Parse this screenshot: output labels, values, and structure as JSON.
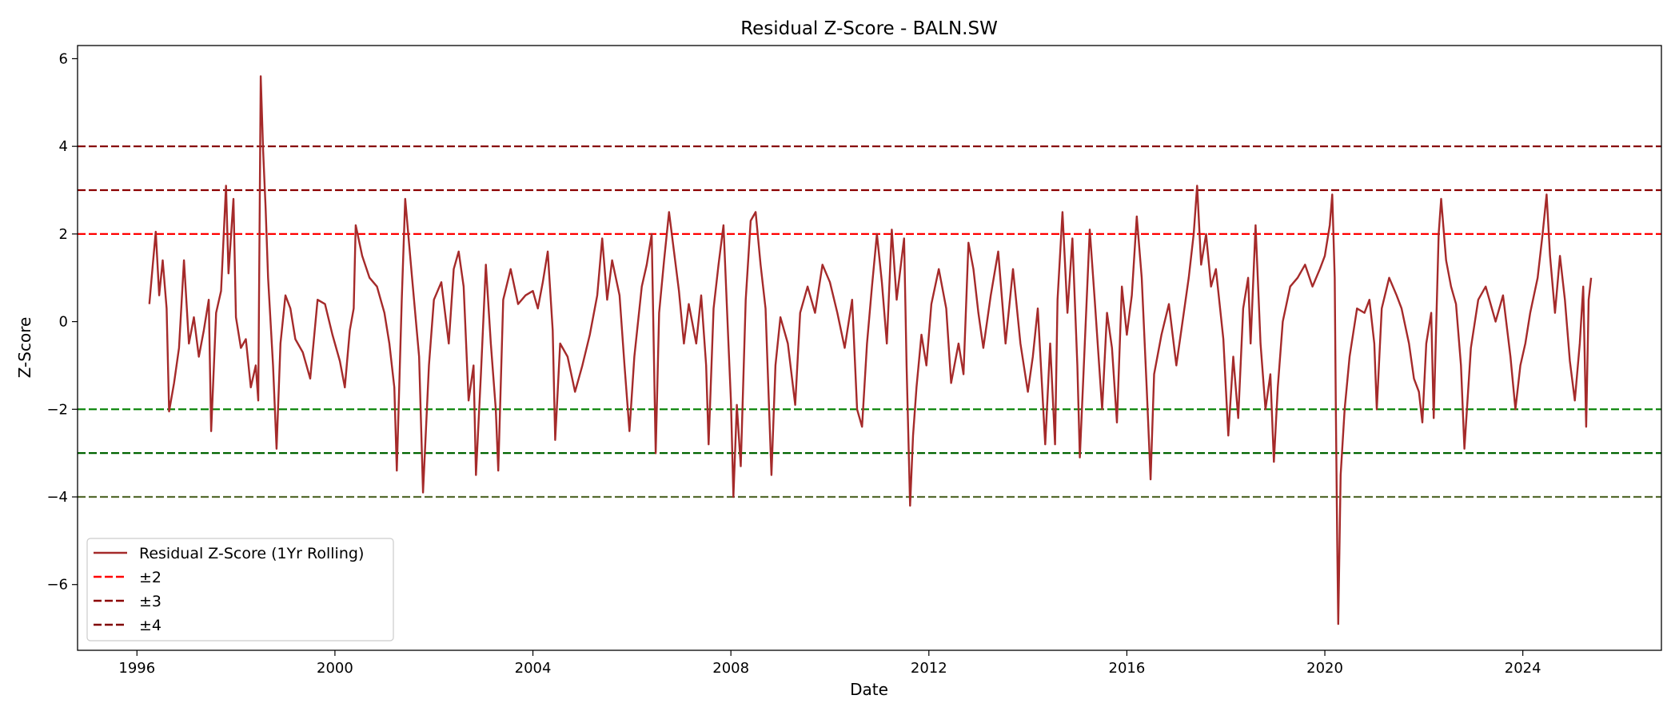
{
  "chart_data": {
    "type": "line",
    "title": "Residual Z-Score - BALN.SW",
    "xlabel": "Date",
    "ylabel": "Z-Score",
    "xlim": [
      1994.8,
      2026.8
    ],
    "ylim": [
      -7.5,
      6.3
    ],
    "xticks": [
      1996,
      2000,
      2004,
      2008,
      2012,
      2016,
      2020,
      2024
    ],
    "yticks": [
      -6,
      -4,
      -2,
      0,
      2,
      4,
      6
    ],
    "ytick_labels": [
      "−6",
      "−4",
      "−2",
      "0",
      "2",
      "4",
      "6"
    ],
    "grid": false,
    "legend_position": "lower-left",
    "series": [
      {
        "name": "Residual Z-Score (1Yr Rolling)",
        "color": "#a52a2a",
        "style": "solid",
        "points": [
          [
            1996.25,
            0.4
          ],
          [
            1996.32,
            1.3
          ],
          [
            1996.38,
            2.05
          ],
          [
            1996.45,
            0.6
          ],
          [
            1996.52,
            1.4
          ],
          [
            1996.6,
            0.3
          ],
          [
            1996.65,
            -2.05
          ],
          [
            1996.75,
            -1.4
          ],
          [
            1996.85,
            -0.6
          ],
          [
            1996.95,
            1.4
          ],
          [
            1997.05,
            -0.5
          ],
          [
            1997.15,
            0.1
          ],
          [
            1997.25,
            -0.8
          ],
          [
            1997.35,
            -0.2
          ],
          [
            1997.45,
            0.5
          ],
          [
            1997.5,
            -2.5
          ],
          [
            1997.6,
            0.2
          ],
          [
            1997.7,
            0.7
          ],
          [
            1997.8,
            3.1
          ],
          [
            1997.85,
            1.1
          ],
          [
            1997.95,
            2.8
          ],
          [
            1998.0,
            0.1
          ],
          [
            1998.1,
            -0.6
          ],
          [
            1998.2,
            -0.4
          ],
          [
            1998.3,
            -1.5
          ],
          [
            1998.4,
            -1.0
          ],
          [
            1998.45,
            -1.8
          ],
          [
            1998.5,
            5.6
          ],
          [
            1998.55,
            3.9
          ],
          [
            1998.6,
            2.6
          ],
          [
            1998.65,
            1.0
          ],
          [
            1998.75,
            -1.0
          ],
          [
            1998.82,
            -2.9
          ],
          [
            1998.9,
            -0.5
          ],
          [
            1999.0,
            0.6
          ],
          [
            1999.1,
            0.3
          ],
          [
            1999.2,
            -0.4
          ],
          [
            1999.35,
            -0.7
          ],
          [
            1999.5,
            -1.3
          ],
          [
            1999.65,
            0.5
          ],
          [
            1999.8,
            0.4
          ],
          [
            1999.95,
            -0.3
          ],
          [
            2000.1,
            -0.9
          ],
          [
            2000.2,
            -1.5
          ],
          [
            2000.3,
            -0.2
          ],
          [
            2000.38,
            0.3
          ],
          [
            2000.42,
            2.2
          ],
          [
            2000.55,
            1.5
          ],
          [
            2000.7,
            1.0
          ],
          [
            2000.85,
            0.8
          ],
          [
            2001.0,
            0.2
          ],
          [
            2001.1,
            -0.5
          ],
          [
            2001.2,
            -1.5
          ],
          [
            2001.25,
            -3.4
          ],
          [
            2001.35,
            0.5
          ],
          [
            2001.42,
            2.8
          ],
          [
            2001.55,
            1.1
          ],
          [
            2001.7,
            -0.8
          ],
          [
            2001.78,
            -3.9
          ],
          [
            2001.9,
            -1.0
          ],
          [
            2002.0,
            0.5
          ],
          [
            2002.15,
            0.9
          ],
          [
            2002.3,
            -0.5
          ],
          [
            2002.4,
            1.2
          ],
          [
            2002.5,
            1.6
          ],
          [
            2002.6,
            0.8
          ],
          [
            2002.7,
            -1.8
          ],
          [
            2002.8,
            -1.0
          ],
          [
            2002.85,
            -3.5
          ],
          [
            2002.95,
            -1.2
          ],
          [
            2003.05,
            1.3
          ],
          [
            2003.15,
            -0.5
          ],
          [
            2003.25,
            -2.0
          ],
          [
            2003.3,
            -3.4
          ],
          [
            2003.4,
            0.5
          ],
          [
            2003.55,
            1.2
          ],
          [
            2003.7,
            0.4
          ],
          [
            2003.85,
            0.6
          ],
          [
            2004.0,
            0.7
          ],
          [
            2004.1,
            0.3
          ],
          [
            2004.2,
            0.9
          ],
          [
            2004.3,
            1.6
          ],
          [
            2004.4,
            -0.2
          ],
          [
            2004.45,
            -2.7
          ],
          [
            2004.55,
            -0.5
          ],
          [
            2004.7,
            -0.8
          ],
          [
            2004.85,
            -1.6
          ],
          [
            2005.0,
            -1.0
          ],
          [
            2005.15,
            -0.3
          ],
          [
            2005.3,
            0.6
          ],
          [
            2005.4,
            1.9
          ],
          [
            2005.5,
            0.5
          ],
          [
            2005.6,
            1.4
          ],
          [
            2005.75,
            0.6
          ],
          [
            2005.85,
            -1.0
          ],
          [
            2005.95,
            -2.5
          ],
          [
            2006.05,
            -0.8
          ],
          [
            2006.2,
            0.8
          ],
          [
            2006.3,
            1.3
          ],
          [
            2006.4,
            2.0
          ],
          [
            2006.48,
            -3.0
          ],
          [
            2006.55,
            0.2
          ],
          [
            2006.65,
            1.4
          ],
          [
            2006.75,
            2.5
          ],
          [
            2006.85,
            1.6
          ],
          [
            2006.95,
            0.7
          ],
          [
            2007.05,
            -0.5
          ],
          [
            2007.15,
            0.4
          ],
          [
            2007.3,
            -0.5
          ],
          [
            2007.4,
            0.6
          ],
          [
            2007.5,
            -1.0
          ],
          [
            2007.55,
            -2.8
          ],
          [
            2007.65,
            0.3
          ],
          [
            2007.75,
            1.3
          ],
          [
            2007.85,
            2.2
          ],
          [
            2007.95,
            -0.5
          ],
          [
            2008.0,
            -1.8
          ],
          [
            2008.05,
            -4.0
          ],
          [
            2008.12,
            -1.9
          ],
          [
            2008.2,
            -3.3
          ],
          [
            2008.3,
            0.5
          ],
          [
            2008.4,
            2.3
          ],
          [
            2008.5,
            2.5
          ],
          [
            2008.6,
            1.3
          ],
          [
            2008.7,
            0.3
          ],
          [
            2008.75,
            -1.3
          ],
          [
            2008.82,
            -3.5
          ],
          [
            2008.9,
            -1.0
          ],
          [
            2009.0,
            0.1
          ],
          [
            2009.15,
            -0.5
          ],
          [
            2009.3,
            -1.9
          ],
          [
            2009.4,
            0.2
          ],
          [
            2009.55,
            0.8
          ],
          [
            2009.7,
            0.2
          ],
          [
            2009.85,
            1.3
          ],
          [
            2010.0,
            0.9
          ],
          [
            2010.15,
            0.2
          ],
          [
            2010.3,
            -0.6
          ],
          [
            2010.45,
            0.5
          ],
          [
            2010.55,
            -2.0
          ],
          [
            2010.65,
            -2.4
          ],
          [
            2010.75,
            -0.5
          ],
          [
            2010.85,
            0.8
          ],
          [
            2010.95,
            2.0
          ],
          [
            2011.05,
            0.9
          ],
          [
            2011.15,
            -0.5
          ],
          [
            2011.25,
            2.1
          ],
          [
            2011.35,
            0.5
          ],
          [
            2011.5,
            1.9
          ],
          [
            2011.55,
            -1.0
          ],
          [
            2011.62,
            -4.2
          ],
          [
            2011.68,
            -2.6
          ],
          [
            2011.75,
            -1.5
          ],
          [
            2011.85,
            -0.3
          ],
          [
            2011.95,
            -1.0
          ],
          [
            2012.05,
            0.4
          ],
          [
            2012.2,
            1.2
          ],
          [
            2012.35,
            0.3
          ],
          [
            2012.45,
            -1.4
          ],
          [
            2012.6,
            -0.5
          ],
          [
            2012.7,
            -1.2
          ],
          [
            2012.8,
            1.8
          ],
          [
            2012.9,
            1.2
          ],
          [
            2013.0,
            0.2
          ],
          [
            2013.1,
            -0.6
          ],
          [
            2013.25,
            0.6
          ],
          [
            2013.4,
            1.6
          ],
          [
            2013.55,
            -0.5
          ],
          [
            2013.7,
            1.2
          ],
          [
            2013.85,
            -0.5
          ],
          [
            2014.0,
            -1.6
          ],
          [
            2014.1,
            -0.8
          ],
          [
            2014.2,
            0.3
          ],
          [
            2014.35,
            -2.8
          ],
          [
            2014.45,
            -0.5
          ],
          [
            2014.55,
            -2.8
          ],
          [
            2014.6,
            0.5
          ],
          [
            2014.7,
            2.5
          ],
          [
            2014.8,
            0.2
          ],
          [
            2014.9,
            1.9
          ],
          [
            2015.0,
            -1.0
          ],
          [
            2015.05,
            -3.1
          ],
          [
            2015.15,
            -0.5
          ],
          [
            2015.25,
            2.1
          ],
          [
            2015.35,
            0.5
          ],
          [
            2015.5,
            -2.0
          ],
          [
            2015.6,
            0.2
          ],
          [
            2015.7,
            -0.6
          ],
          [
            2015.8,
            -2.3
          ],
          [
            2015.9,
            0.8
          ],
          [
            2016.0,
            -0.3
          ],
          [
            2016.1,
            0.6
          ],
          [
            2016.2,
            2.4
          ],
          [
            2016.3,
            1.0
          ],
          [
            2016.4,
            -1.5
          ],
          [
            2016.48,
            -3.6
          ],
          [
            2016.55,
            -1.2
          ],
          [
            2016.7,
            -0.3
          ],
          [
            2016.85,
            0.4
          ],
          [
            2017.0,
            -1.0
          ],
          [
            2017.1,
            -0.2
          ],
          [
            2017.25,
            1.0
          ],
          [
            2017.35,
            2.0
          ],
          [
            2017.42,
            3.1
          ],
          [
            2017.5,
            1.3
          ],
          [
            2017.6,
            2.0
          ],
          [
            2017.7,
            0.8
          ],
          [
            2017.8,
            1.2
          ],
          [
            2017.95,
            -0.4
          ],
          [
            2018.05,
            -2.6
          ],
          [
            2018.15,
            -0.8
          ],
          [
            2018.25,
            -2.2
          ],
          [
            2018.35,
            0.3
          ],
          [
            2018.45,
            1.0
          ],
          [
            2018.5,
            -0.5
          ],
          [
            2018.6,
            2.2
          ],
          [
            2018.7,
            -0.5
          ],
          [
            2018.8,
            -2.0
          ],
          [
            2018.9,
            -1.2
          ],
          [
            2018.97,
            -3.2
          ],
          [
            2019.05,
            -1.5
          ],
          [
            2019.15,
            0.0
          ],
          [
            2019.3,
            0.8
          ],
          [
            2019.45,
            1.0
          ],
          [
            2019.6,
            1.3
          ],
          [
            2019.75,
            0.8
          ],
          [
            2019.9,
            1.2
          ],
          [
            2020.0,
            1.5
          ],
          [
            2020.1,
            2.2
          ],
          [
            2020.15,
            2.9
          ],
          [
            2020.2,
            1.0
          ],
          [
            2020.22,
            -1.8
          ],
          [
            2020.25,
            -5.0
          ],
          [
            2020.27,
            -6.9
          ],
          [
            2020.32,
            -3.5
          ],
          [
            2020.4,
            -2.0
          ],
          [
            2020.5,
            -0.8
          ],
          [
            2020.65,
            0.3
          ],
          [
            2020.8,
            0.2
          ],
          [
            2020.9,
            0.5
          ],
          [
            2021.0,
            -0.5
          ],
          [
            2021.05,
            -2.0
          ],
          [
            2021.15,
            0.3
          ],
          [
            2021.3,
            1.0
          ],
          [
            2021.45,
            0.6
          ],
          [
            2021.55,
            0.3
          ],
          [
            2021.7,
            -0.5
          ],
          [
            2021.8,
            -1.3
          ],
          [
            2021.9,
            -1.6
          ],
          [
            2021.97,
            -2.3
          ],
          [
            2022.05,
            -0.5
          ],
          [
            2022.15,
            0.2
          ],
          [
            2022.2,
            -2.2
          ],
          [
            2022.3,
            2.0
          ],
          [
            2022.35,
            2.8
          ],
          [
            2022.45,
            1.4
          ],
          [
            2022.55,
            0.8
          ],
          [
            2022.65,
            0.4
          ],
          [
            2022.75,
            -1.0
          ],
          [
            2022.82,
            -2.9
          ],
          [
            2022.95,
            -0.6
          ],
          [
            2023.1,
            0.5
          ],
          [
            2023.25,
            0.8
          ],
          [
            2023.45,
            0.0
          ],
          [
            2023.6,
            0.6
          ],
          [
            2023.75,
            -0.8
          ],
          [
            2023.85,
            -2.0
          ],
          [
            2023.95,
            -1.0
          ],
          [
            2024.05,
            -0.5
          ],
          [
            2024.15,
            0.2
          ],
          [
            2024.3,
            1.0
          ],
          [
            2024.4,
            2.0
          ],
          [
            2024.48,
            2.9
          ],
          [
            2024.55,
            1.5
          ],
          [
            2024.65,
            0.2
          ],
          [
            2024.75,
            1.5
          ],
          [
            2024.85,
            0.5
          ],
          [
            2024.95,
            -0.9
          ],
          [
            2025.05,
            -1.8
          ],
          [
            2025.15,
            -0.5
          ],
          [
            2025.22,
            0.8
          ],
          [
            2025.28,
            -2.4
          ],
          [
            2025.33,
            0.5
          ],
          [
            2025.38,
            1.0
          ]
        ]
      }
    ],
    "reference_lines": [
      {
        "name": "±2",
        "y": 2,
        "color": "#ff0000",
        "style": "dashed",
        "in_legend": true
      },
      {
        "name": "",
        "y": -2,
        "color": "#008000",
        "style": "dashed",
        "in_legend": false
      },
      {
        "name": "±3",
        "y": 3,
        "color": "#8b0000",
        "style": "dashed",
        "in_legend": true
      },
      {
        "name": "",
        "y": -3,
        "color": "#006400",
        "style": "dashed",
        "in_legend": false
      },
      {
        "name": "±4",
        "y": 4,
        "color": "#800000",
        "style": "dashed",
        "in_legend": true
      },
      {
        "name": "",
        "y": -4,
        "color": "#556b2f",
        "style": "dashed",
        "in_legend": false
      }
    ],
    "legend": [
      {
        "label": "Residual Z-Score (1Yr Rolling)",
        "color": "#a52a2a",
        "style": "solid"
      },
      {
        "label": "±2",
        "color": "#ff0000",
        "style": "dashed"
      },
      {
        "label": "±3",
        "color": "#8b0000",
        "style": "dashed"
      },
      {
        "label": "±4",
        "color": "#800000",
        "style": "dashed"
      }
    ]
  }
}
